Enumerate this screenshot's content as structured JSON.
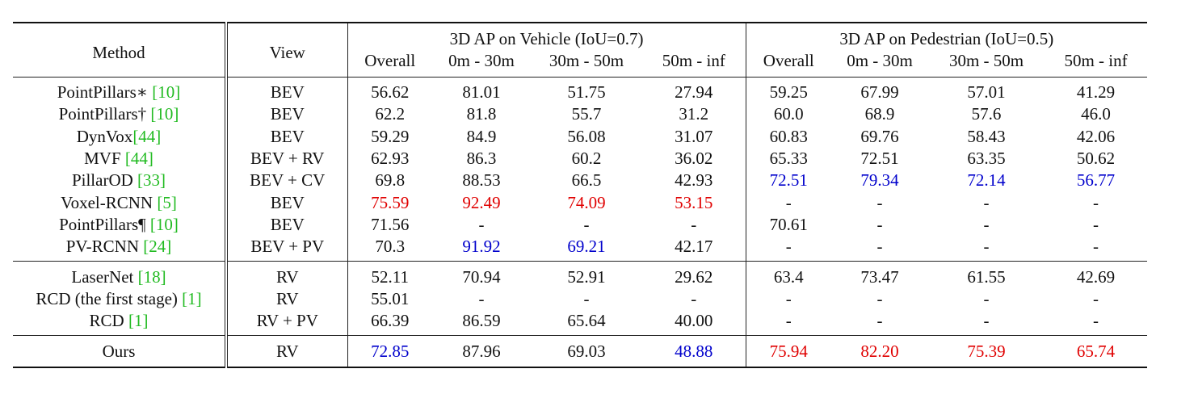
{
  "headers": {
    "method": "Method",
    "view": "View",
    "vehicle_group": "3D AP on Vehicle (IoU=0.7)",
    "pedestrian_group": "3D AP on Pedestrian (IoU=0.5)",
    "sub": [
      "Overall",
      "0m - 30m",
      "30m - 50m",
      "50m - inf",
      "Overall",
      "0m - 30m",
      "30m - 50m",
      "50m - inf"
    ]
  },
  "groups": [
    [
      {
        "method": "PointPillars∗ ",
        "cite": "[10]",
        "view": "BEV",
        "values": [
          "56.62",
          "81.01",
          "51.75",
          "27.94",
          "59.25",
          "67.99",
          "57.01",
          "41.29"
        ],
        "styles": [
          "",
          "",
          "",
          "",
          "",
          "",
          "",
          ""
        ]
      },
      {
        "method": "PointPillars† ",
        "cite": "[10]",
        "view": "BEV",
        "values": [
          "62.2",
          "81.8",
          "55.7",
          "31.2",
          "60.0",
          "68.9",
          "57.6",
          "46.0"
        ],
        "styles": [
          "",
          "",
          "",
          "",
          "",
          "",
          "",
          ""
        ]
      },
      {
        "method": "DynVox",
        "cite": "[44]",
        "view": "BEV",
        "values": [
          "59.29",
          "84.9",
          "56.08",
          "31.07",
          "60.83",
          "69.76",
          "58.43",
          "42.06"
        ],
        "styles": [
          "",
          "",
          "",
          "",
          "",
          "",
          "",
          ""
        ]
      },
      {
        "method": "MVF ",
        "cite": "[44]",
        "view": "BEV + RV",
        "values": [
          "62.93",
          "86.3",
          "60.2",
          "36.02",
          "65.33",
          "72.51",
          "63.35",
          "50.62"
        ],
        "styles": [
          "",
          "",
          "",
          "",
          "",
          "",
          "",
          ""
        ]
      },
      {
        "method": "PillarOD ",
        "cite": "[33]",
        "view": "BEV + CV",
        "values": [
          "69.8",
          "88.53",
          "66.5",
          "42.93",
          "72.51",
          "79.34",
          "72.14",
          "56.77"
        ],
        "styles": [
          "",
          "",
          "",
          "",
          "blue",
          "blue",
          "blue",
          "blue"
        ]
      },
      {
        "method": "Voxel-RCNN ",
        "cite": "[5]",
        "view": "BEV",
        "values": [
          "75.59",
          "92.49",
          "74.09",
          "53.15",
          "-",
          "-",
          "-",
          "-"
        ],
        "styles": [
          "red",
          "red",
          "red",
          "red",
          "",
          "",
          "",
          ""
        ]
      },
      {
        "method": "PointPillars¶ ",
        "cite": "[10]",
        "view": "BEV",
        "values": [
          "71.56",
          "-",
          "-",
          "-",
          "70.61",
          "-",
          "-",
          "-"
        ],
        "styles": [
          "",
          "",
          "",
          "",
          "",
          "",
          "",
          ""
        ]
      },
      {
        "method": "PV-RCNN ",
        "cite": "[24]",
        "view": "BEV + PV",
        "values": [
          "70.3",
          "91.92",
          "69.21",
          "42.17",
          "-",
          "-",
          "-",
          "-"
        ],
        "styles": [
          "",
          "blue",
          "blue",
          "",
          "",
          "",
          "",
          ""
        ]
      }
    ],
    [
      {
        "method": "LaserNet ",
        "cite": "[18]",
        "view": "RV",
        "values": [
          "52.11",
          "70.94",
          "52.91",
          "29.62",
          "63.4",
          "73.47",
          "61.55",
          "42.69"
        ],
        "styles": [
          "",
          "",
          "",
          "",
          "",
          "",
          "",
          ""
        ]
      },
      {
        "method": "RCD (the first stage) ",
        "cite": "[1]",
        "view": "RV",
        "values": [
          "55.01",
          "-",
          "-",
          "-",
          "-",
          "-",
          "-",
          "-"
        ],
        "styles": [
          "",
          "",
          "",
          "",
          "",
          "",
          "",
          ""
        ]
      },
      {
        "method": "RCD ",
        "cite": "[1]",
        "view": "RV + PV",
        "values": [
          "66.39",
          "86.59",
          "65.64",
          "40.00",
          "-",
          "-",
          "-",
          "-"
        ],
        "styles": [
          "",
          "",
          "",
          "",
          "",
          "",
          "",
          ""
        ]
      }
    ]
  ],
  "ours": {
    "method": "Ours",
    "view": "RV",
    "values": [
      "72.85",
      "87.96",
      "69.03",
      "48.88",
      "75.94",
      "82.20",
      "75.39",
      "65.74"
    ],
    "styles": [
      "blue",
      "",
      "",
      "blue",
      "red",
      "red",
      "red",
      "red"
    ]
  }
}
